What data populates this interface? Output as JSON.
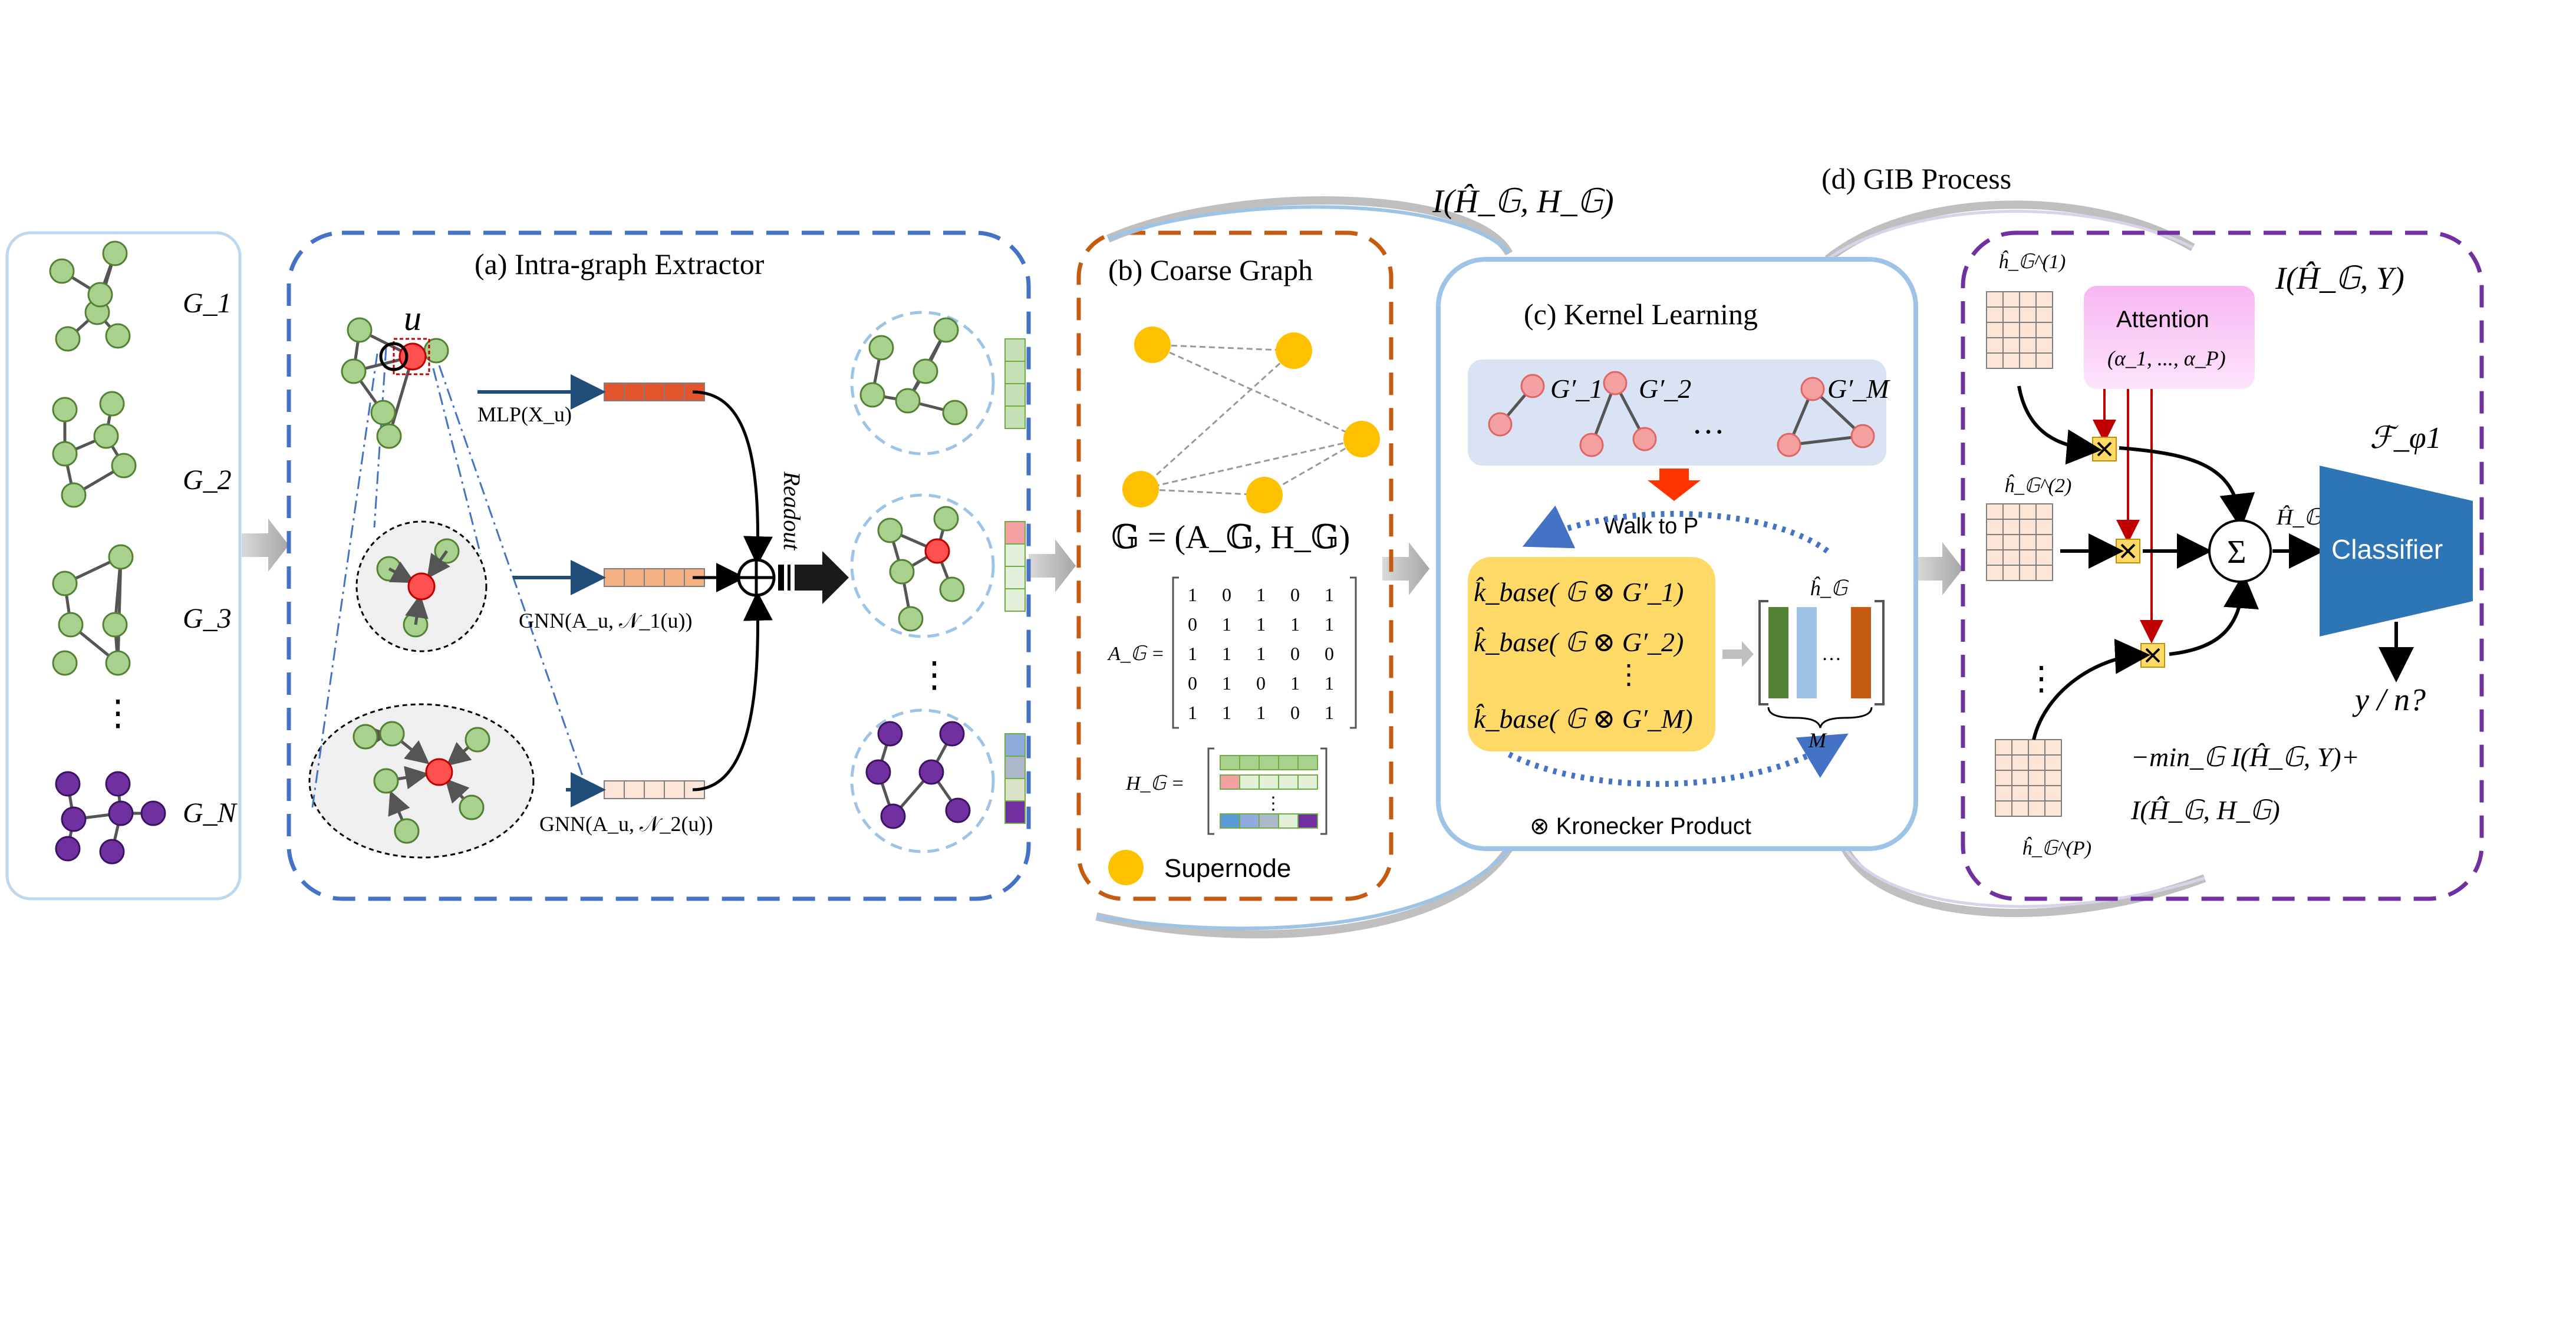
{
  "input_graphs": {
    "labels": [
      "G_1",
      "G_2",
      "G_3",
      "⋮",
      "G_N"
    ]
  },
  "panel_a": {
    "title": "(a) Intra-graph Extractor",
    "node_label": "u",
    "mlp_label": "MLP(X_u)",
    "gnn1_label": "GNN(A_u, 𝒩_1(u))",
    "gnn2_label": "GNN(A_u, 𝒩_2(u))",
    "readout_label": "Readout",
    "vdots": "⋮"
  },
  "panel_b": {
    "title": "(b) Coarse Graph",
    "equation": "𝔾 = (A_𝔾, H_𝔾)",
    "a_label": "A_𝔾 =",
    "h_label": "H_𝔾 =",
    "matrix": [
      [
        1,
        0,
        1,
        0,
        1
      ],
      [
        0,
        1,
        1,
        1,
        1
      ],
      [
        1,
        1,
        1,
        0,
        0
      ],
      [
        0,
        1,
        0,
        1,
        1
      ],
      [
        1,
        1,
        1,
        0,
        1
      ]
    ],
    "legend_label": "Supernode"
  },
  "mi_top": "I(Ĥ_𝔾, H_𝔾)",
  "panel_c": {
    "title": "(c) Kernel Learning",
    "graphs": [
      "G′_1",
      "G′_2",
      "…",
      "G′_M"
    ],
    "walk_label": "Walk to P",
    "kernel_rows": [
      "k̂_base( 𝔾 ⊗ G′_1)",
      "k̂_base( 𝔾 ⊗ G′_2)",
      "⋮",
      "k̂_base( 𝔾 ⊗ G′_M)"
    ],
    "h_label": "ĥ_𝔾",
    "m_label": "M",
    "dots": "…",
    "kronecker_label": "⊗  Kronecker Product"
  },
  "panel_d": {
    "title": "(d) GIB Process",
    "mi_label": "I(Ĥ_𝔾, Y)",
    "h1": "ĥ_𝔾^(1)",
    "h2": "ĥ_𝔾^(2)",
    "hp": "ĥ_𝔾^(P)",
    "vdots": "⋮",
    "attention_title": "Attention",
    "attention_params": "(α_1, ..., α_P)",
    "sum_label": "Σ",
    "h_out": "Ĥ_𝔾",
    "classifier_param": "ℱ_φ1",
    "classifier_label": "Classifier",
    "output_label": "y / n?",
    "objective_line1": "−min_𝔾 I(Ĥ_𝔾, Y)+",
    "objective_line2": "I(Ĥ_𝔾, H_𝔾)"
  },
  "colors": {
    "blue_dash": "#4472c4",
    "orange_dash": "#c55a11",
    "purple_dash": "#7030a0",
    "green_node": "#a9d18e",
    "green_dark": "#70ad47",
    "purple_node": "#7030a0",
    "yellow": "#ffc000",
    "red_node": "#ff5050",
    "pink_node": "#f4a0a0",
    "kernel_fill": "#ffd966",
    "classifier": "#2e75b6",
    "attention": "#f4a8f0",
    "grid_fill": "#fbe5d6"
  }
}
